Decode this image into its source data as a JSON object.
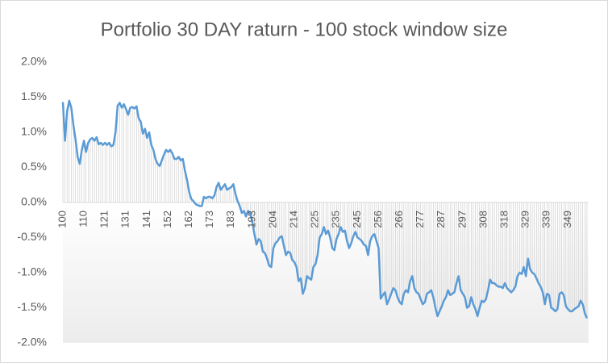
{
  "chart_data": {
    "type": "line",
    "title": "Portfolio  30 DAY raturn  - 100 stock window size",
    "categories": [
      "100",
      null,
      null,
      null,
      null,
      null,
      null,
      null,
      null,
      null,
      "110",
      null,
      null,
      null,
      null,
      null,
      null,
      null,
      null,
      null,
      "121",
      null,
      null,
      null,
      null,
      null,
      null,
      null,
      null,
      null,
      "131",
      null,
      null,
      null,
      null,
      null,
      null,
      null,
      null,
      null,
      "141",
      null,
      null,
      null,
      null,
      null,
      null,
      null,
      null,
      null,
      "152",
      null,
      null,
      null,
      null,
      null,
      null,
      null,
      null,
      null,
      "162",
      null,
      null,
      null,
      null,
      null,
      null,
      null,
      null,
      null,
      "173",
      null,
      null,
      null,
      null,
      null,
      null,
      null,
      null,
      null,
      "183",
      null,
      null,
      null,
      null,
      null,
      null,
      null,
      null,
      null,
      "193",
      null,
      null,
      null,
      null,
      null,
      null,
      null,
      null,
      null,
      "204",
      null,
      null,
      null,
      null,
      null,
      null,
      null,
      null,
      null,
      "214",
      null,
      null,
      null,
      null,
      null,
      null,
      null,
      null,
      null,
      "225",
      null,
      null,
      null,
      null,
      null,
      null,
      null,
      null,
      null,
      "235",
      null,
      null,
      null,
      null,
      null,
      null,
      null,
      null,
      null,
      "245",
      null,
      null,
      null,
      null,
      null,
      null,
      null,
      null,
      null,
      "256",
      null,
      null,
      null,
      null,
      null,
      null,
      null,
      null,
      null,
      "266",
      null,
      null,
      null,
      null,
      null,
      null,
      null,
      null,
      null,
      "277",
      null,
      null,
      null,
      null,
      null,
      null,
      null,
      null,
      null,
      "287",
      null,
      null,
      null,
      null,
      null,
      null,
      null,
      null,
      null,
      "297",
      null,
      null,
      null,
      null,
      null,
      null,
      null,
      null,
      null,
      "308",
      null,
      null,
      null,
      null,
      null,
      null,
      null,
      null,
      null,
      "318",
      null,
      null,
      null,
      null,
      null,
      null,
      null,
      null,
      null,
      "329",
      null,
      null,
      null,
      null,
      null,
      null,
      null,
      null,
      null,
      "339",
      null,
      null,
      null,
      null,
      null,
      null,
      null,
      null,
      null,
      "349",
      null,
      null,
      null,
      null,
      null,
      null,
      null,
      null,
      null
    ],
    "values": [
      1.43,
      0.88,
      1.3,
      1.45,
      1.35,
      1.1,
      0.9,
      0.65,
      0.55,
      0.75,
      0.88,
      0.72,
      0.85,
      0.9,
      0.92,
      0.88,
      0.93,
      0.83,
      0.85,
      0.82,
      0.85,
      0.82,
      0.85,
      0.8,
      0.82,
      1.0,
      1.38,
      1.42,
      1.35,
      1.4,
      1.33,
      1.25,
      1.35,
      1.36,
      1.34,
      1.37,
      1.2,
      1.15,
      0.98,
      1.05,
      0.92,
      1.0,
      0.82,
      0.75,
      0.62,
      0.55,
      0.52,
      0.6,
      0.68,
      0.75,
      0.72,
      0.75,
      0.7,
      0.62,
      0.62,
      0.65,
      0.6,
      0.62,
      0.45,
      0.32,
      0.15,
      0.05,
      0.02,
      -0.02,
      -0.04,
      -0.05,
      -0.05,
      0.08,
      0.06,
      0.08,
      0.08,
      0.06,
      0.1,
      0.22,
      0.28,
      0.18,
      0.22,
      0.26,
      0.18,
      0.2,
      0.22,
      0.26,
      0.12,
      0.02,
      -0.05,
      -0.15,
      -0.12,
      -0.2,
      -0.12,
      -0.15,
      -0.28,
      -0.45,
      -0.6,
      -0.52,
      -0.55,
      -0.7,
      -0.72,
      -0.8,
      -0.9,
      -0.92,
      -0.65,
      -0.58,
      -0.55,
      -0.5,
      -0.48,
      -0.62,
      -0.75,
      -0.7,
      -0.72,
      -0.82,
      -0.85,
      -0.92,
      -1.12,
      -1.08,
      -1.3,
      -1.22,
      -1.05,
      -1.08,
      -1.1,
      -0.92,
      -0.88,
      -0.75,
      -0.5,
      -0.45,
      -0.35,
      -0.45,
      -0.4,
      -0.5,
      -0.65,
      -0.68,
      -0.52,
      -0.45,
      -0.35,
      -0.42,
      -0.4,
      -0.55,
      -0.65,
      -0.58,
      -0.48,
      -0.42,
      -0.5,
      -0.52,
      -0.55,
      -0.6,
      -0.62,
      -0.75,
      -0.55,
      -0.48,
      -0.45,
      -0.55,
      -0.65,
      -1.37,
      -1.32,
      -1.28,
      -1.45,
      -1.38,
      -1.3,
      -1.22,
      -1.25,
      -1.35,
      -1.42,
      -1.45,
      -1.3,
      -1.25,
      -1.28,
      -1.12,
      -1.05,
      -1.22,
      -1.28,
      -1.3,
      -1.38,
      -1.45,
      -1.42,
      -1.3,
      -1.28,
      -1.25,
      -1.35,
      -1.5,
      -1.62,
      -1.55,
      -1.48,
      -1.4,
      -1.35,
      -1.25,
      -1.32,
      -1.3,
      -1.28,
      -1.15,
      -1.05,
      -1.25,
      -1.3,
      -1.35,
      -1.5,
      -1.48,
      -1.35,
      -1.45,
      -1.52,
      -1.62,
      -1.5,
      -1.4,
      -1.42,
      -1.38,
      -1.25,
      -1.1,
      -1.15,
      -1.15,
      -1.18,
      -1.2,
      -1.2,
      -1.22,
      -1.15,
      -1.22,
      -1.25,
      -1.28,
      -1.25,
      -1.2,
      -1.05,
      -1.0,
      -1.02,
      -0.92,
      -1.05,
      -0.8,
      -0.95,
      -1.0,
      -1.02,
      -1.08,
      -1.15,
      -1.2,
      -1.28,
      -1.45,
      -1.3,
      -1.32,
      -1.5,
      -1.52,
      -1.55,
      -1.52,
      -1.3,
      -1.28,
      -1.32,
      -1.48,
      -1.52,
      -1.55,
      -1.55,
      -1.52,
      -1.5,
      -1.48,
      -1.4,
      -1.45,
      -1.58,
      -1.65
    ],
    "color": "#5b9bd5",
    "drop_lines": true,
    "ylim": [
      -2,
      2
    ],
    "yticks": [
      {
        "value": -2,
        "label": "-2.0%"
      },
      {
        "value": -1.5,
        "label": "-1.5%"
      },
      {
        "value": -1,
        "label": "-1.0%"
      },
      {
        "value": -0.5,
        "label": "-0.5%"
      },
      {
        "value": 0,
        "label": "0.0%"
      },
      {
        "value": 0.5,
        "label": "0.5%"
      },
      {
        "value": 1,
        "label": "1.0%"
      },
      {
        "value": 1.5,
        "label": "1.5%"
      },
      {
        "value": 2,
        "label": "2.0%"
      }
    ]
  }
}
